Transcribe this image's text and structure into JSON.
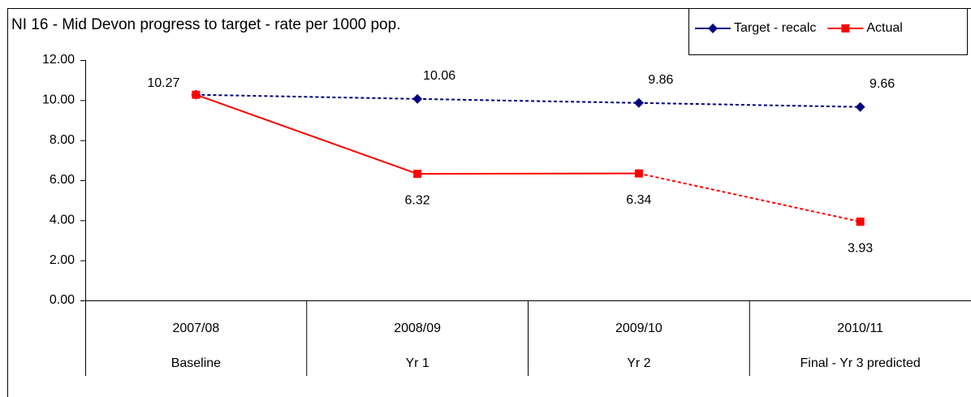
{
  "chart_data": {
    "type": "line",
    "title": "NI 16 - Mid Devon progress to target - rate per 1000 pop.",
    "categories": [
      "2007/08",
      "2008/09",
      "2009/10",
      "2010/11"
    ],
    "subcategories": [
      "Baseline",
      "Yr 1",
      "Yr 2",
      "Final - Yr 3 predicted"
    ],
    "series": [
      {
        "name": "Target - recalc",
        "color": "#000080",
        "marker": "diamond",
        "dashed_segments": [
          0,
          1,
          2
        ],
        "values": [
          10.27,
          10.06,
          9.86,
          9.66
        ],
        "value_labels": [
          "10.27",
          "10.06",
          "9.86",
          "9.66"
        ]
      },
      {
        "name": "Actual",
        "color": "#ff0000",
        "marker": "square",
        "dashed_segments": [
          2
        ],
        "values": [
          10.27,
          6.32,
          6.34,
          3.93
        ],
        "value_labels": [
          null,
          "6.32",
          "6.34",
          "3.93"
        ]
      }
    ],
    "ylim": [
      0,
      12
    ],
    "yticks": [
      {
        "value": 0,
        "label": "0.00"
      },
      {
        "value": 2,
        "label": "2.00"
      },
      {
        "value": 4,
        "label": "4.00"
      },
      {
        "value": 6,
        "label": "6.00"
      },
      {
        "value": 8,
        "label": "8.00"
      },
      {
        "value": 10,
        "label": "10.00"
      },
      {
        "value": 12,
        "label": "12.00"
      }
    ],
    "grid": false,
    "legend": "top-right"
  }
}
